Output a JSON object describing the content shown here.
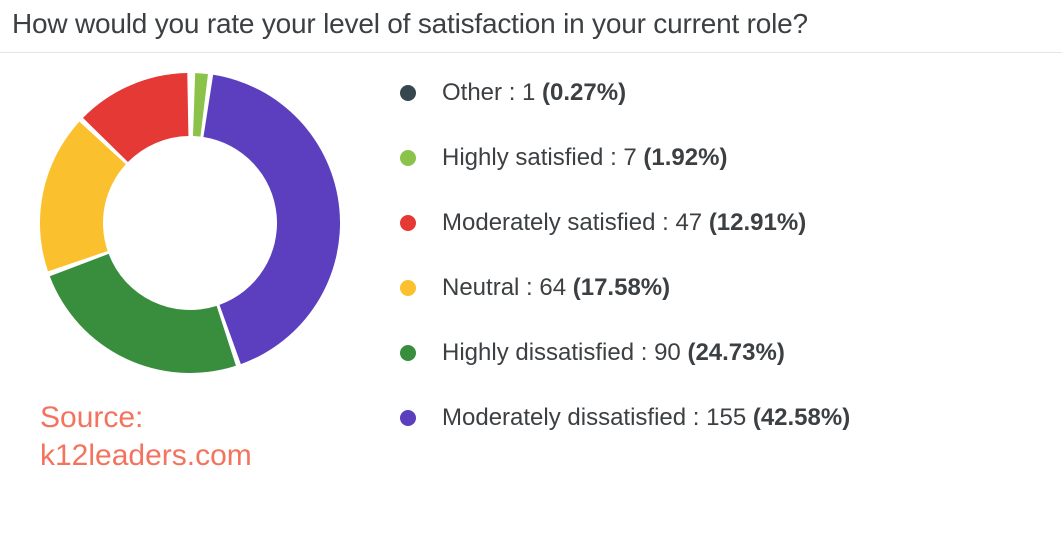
{
  "title": "How would you rate your level of satisfaction in your current role?",
  "source_label": "Source:",
  "source_name": "k12leaders.com",
  "source_color": "#f4735e",
  "chart": {
    "type": "donut",
    "size": 300,
    "inner_radius_ratio": 0.58,
    "gap_deg": 2.0,
    "start_angle_deg": -90,
    "background_color": "#ffffff",
    "legend_dot_size": 16,
    "legend_fontsize": 24,
    "legend_text_color": "#3c4043",
    "slices": [
      {
        "label": "Other",
        "count": 1,
        "percent": 0.27,
        "color": "#37474f",
        "arc_color": "#37474f"
      },
      {
        "label": "Highly satisfied",
        "count": 7,
        "percent": 1.92,
        "color": "#8bc34a",
        "arc_color": "#8bc34a"
      },
      {
        "label": "Moderately satisfied",
        "count": 47,
        "percent": 12.91,
        "color": "#e53935",
        "arc_color": "#e53935"
      },
      {
        "label": "Neutral",
        "count": 64,
        "percent": 17.58,
        "color": "#fbc02d",
        "arc_color": "#fbc02d"
      },
      {
        "label": "Highly dissatisfied",
        "count": 90,
        "percent": 24.73,
        "color": "#388e3c",
        "arc_color": "#388e3c"
      },
      {
        "label": "Moderately dissatisfied",
        "count": 155,
        "percent": 42.58,
        "color": "#5c3fbf",
        "arc_color": "#5c3fbf"
      }
    ],
    "draw_order": [
      2,
      3,
      4,
      5,
      1
    ]
  }
}
